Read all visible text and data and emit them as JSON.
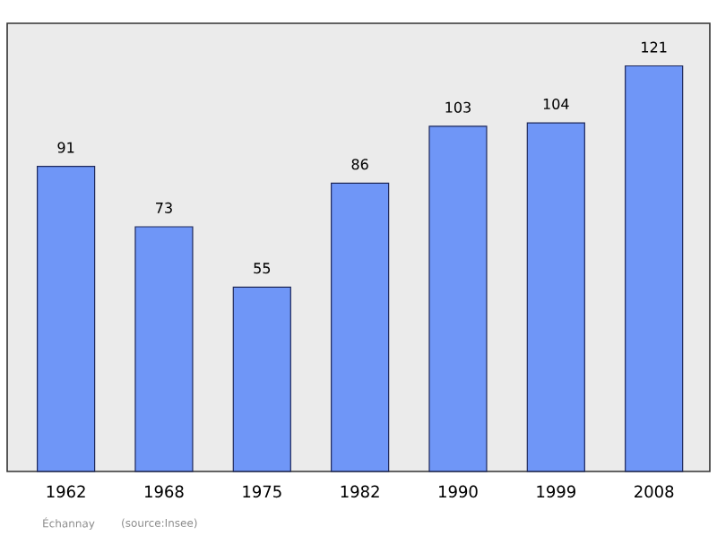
{
  "chart_data": {
    "type": "bar",
    "categories": [
      "1962",
      "1968",
      "1975",
      "1982",
      "1990",
      "1999",
      "2008"
    ],
    "values": [
      91,
      73,
      55,
      86,
      103,
      104,
      121
    ],
    "color": "#6f96f7",
    "data_labels": true,
    "annotations": [
      "Échannay",
      "(source:Insee)"
    ]
  }
}
